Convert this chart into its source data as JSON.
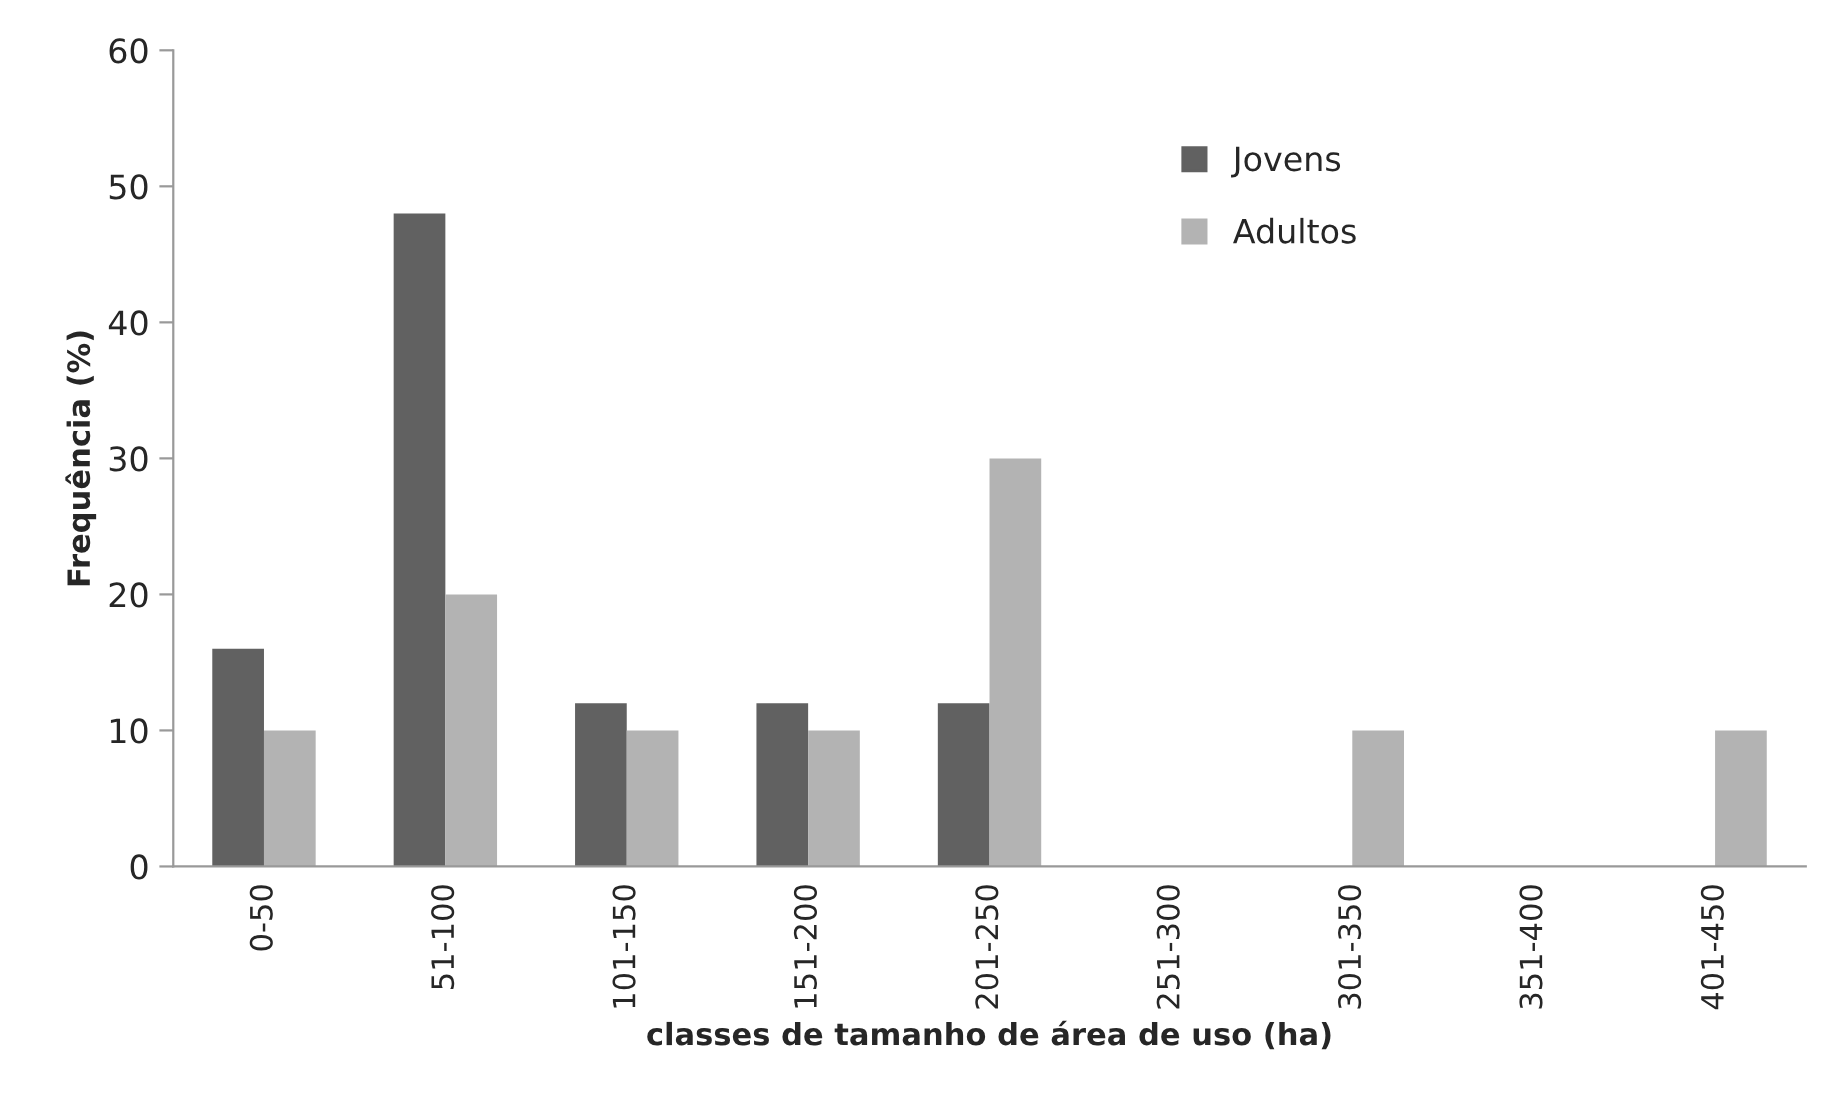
{
  "chart_data": {
    "type": "bar",
    "xlabel": "classes de tamanho de área de uso (ha)",
    "ylabel": "Frequência (%)",
    "categories": [
      "0-50",
      "51-100",
      "101-150",
      "151-200",
      "201-250",
      "251-300",
      "301-350",
      "351-400",
      "401-450"
    ],
    "series": [
      {
        "name": "Jovens",
        "color": "#616161",
        "values": [
          16,
          48,
          12,
          12,
          12,
          0,
          0,
          0,
          0
        ]
      },
      {
        "name": "Adultos",
        "color": "#b3b3b3",
        "values": [
          10,
          20,
          10,
          10,
          30,
          0,
          10,
          0,
          10
        ]
      }
    ],
    "ylim": [
      0,
      60
    ],
    "yticks": [
      0,
      10,
      20,
      30,
      40,
      50,
      60
    ],
    "grid": false,
    "legend": "top right"
  }
}
